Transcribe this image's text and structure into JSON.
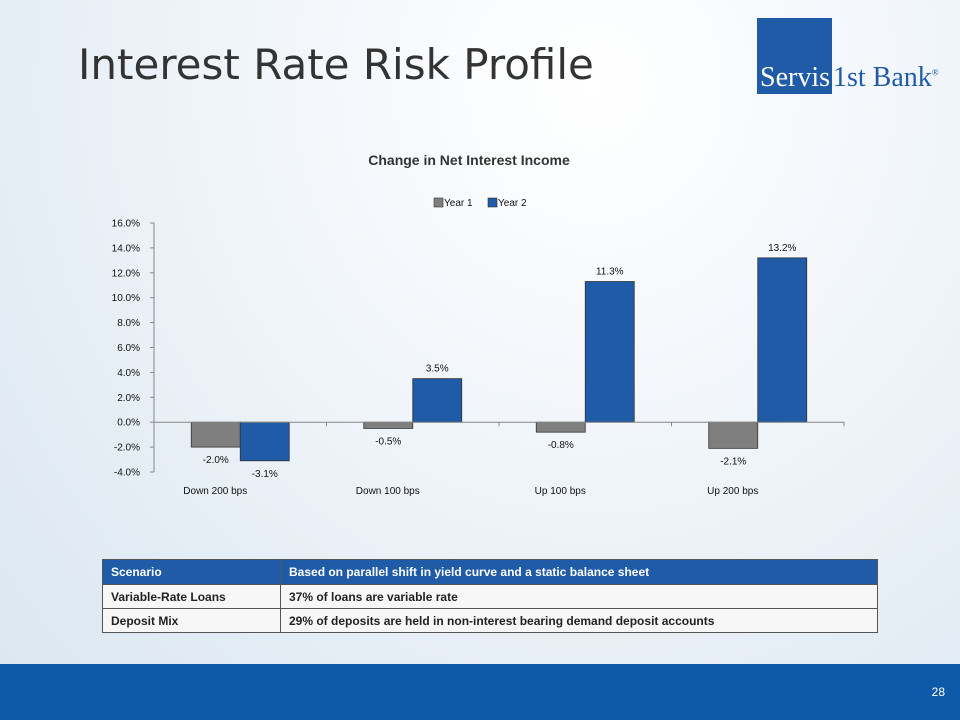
{
  "slide": {
    "title": "Interest Rate Risk Profile",
    "logo_text_white": "Servis",
    "logo_text_blue": "1st Bank",
    "logo_reg": "®",
    "page_number": "28"
  },
  "colors": {
    "year1": "#7f7f7f",
    "year2": "#1f5ba6",
    "footer": "#0f5aa8",
    "table_header": "#1f5ba6"
  },
  "chart_data": {
    "type": "bar",
    "title": "Change in Net Interest Income",
    "categories": [
      "Down 200 bps",
      "Down 100 bps",
      "Up 100 bps",
      "Up 200 bps"
    ],
    "series": [
      {
        "name": "Year 1",
        "values": [
          -2.0,
          -0.5,
          -0.8,
          -2.1
        ],
        "labels": [
          "-2.0%",
          "-0.5%",
          "-0.8%",
          "-2.1%"
        ]
      },
      {
        "name": "Year 2",
        "values": [
          -3.1,
          3.5,
          11.3,
          13.2
        ],
        "labels": [
          "-3.1%",
          "3.5%",
          "11.3%",
          "13.2%"
        ]
      }
    ],
    "ylim": [
      -4,
      16
    ],
    "yticks": [
      "16.0%",
      "14.0%",
      "12.0%",
      "10.0%",
      "8.0%",
      "6.0%",
      "4.0%",
      "2.0%",
      "0.0%",
      "-2.0%",
      "-4.0%"
    ],
    "legend": "top-center",
    "grid": false
  },
  "table": {
    "header": [
      "Scenario",
      "Based on parallel shift in yield curve and a static balance sheet"
    ],
    "rows": [
      [
        "Variable-Rate Loans",
        "37% of loans are variable rate"
      ],
      [
        "Deposit Mix",
        "29% of deposits are held in non-interest bearing demand deposit accounts"
      ]
    ]
  }
}
